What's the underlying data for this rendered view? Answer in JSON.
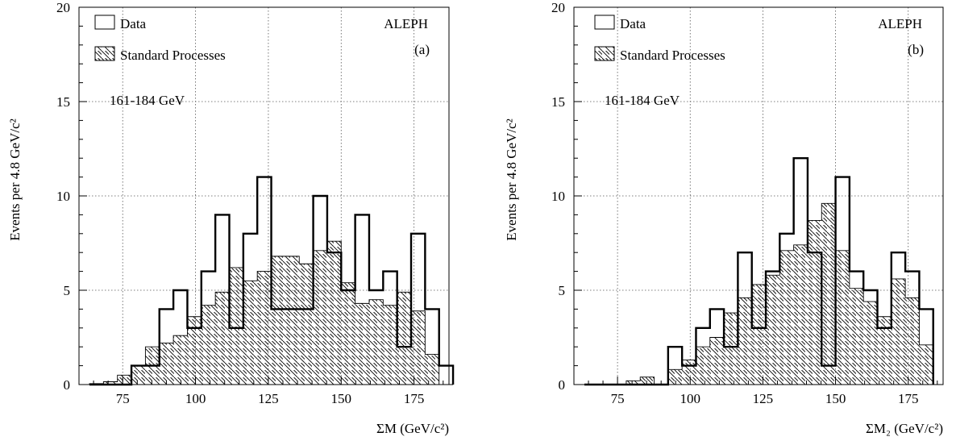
{
  "chart_data": [
    {
      "type": "bar",
      "panel_label": "(a)",
      "experiment_label": "ALEPH",
      "energy_label": "161-184 GeV",
      "ylabel": "Events per 4.8 GeV/c²",
      "xlabel": "ΣM (GeV/c²)",
      "xlim": [
        60,
        187
      ],
      "ylim": [
        0,
        20
      ],
      "xticks": [
        75,
        100,
        125,
        150,
        175
      ],
      "yticks": [
        0,
        5,
        10,
        15,
        20
      ],
      "grid": true,
      "legend": {
        "placement": "top-left",
        "entries": [
          "Data",
          "Standard Processes"
        ]
      },
      "bin_start": 63.6,
      "bin_width": 4.8,
      "series": [
        {
          "name": "Data",
          "style": "outline",
          "values": [
            0,
            0,
            0,
            1,
            1,
            4,
            5,
            3,
            6,
            9,
            3,
            8,
            11,
            4,
            4,
            4,
            10,
            7,
            5,
            9,
            5,
            6,
            2,
            8,
            4,
            1
          ]
        },
        {
          "name": "Standard Processes",
          "style": "hatched",
          "values": [
            0.05,
            0.15,
            0.5,
            1.0,
            2.0,
            2.2,
            2.6,
            3.6,
            4.2,
            4.9,
            6.2,
            5.5,
            6.0,
            6.8,
            6.8,
            6.4,
            7.1,
            7.6,
            5.4,
            4.3,
            4.5,
            4.2,
            4.9,
            3.9,
            1.6,
            0.0
          ]
        }
      ]
    },
    {
      "type": "bar",
      "panel_label": "(b)",
      "experiment_label": "ALEPH",
      "energy_label": "161-184 GeV",
      "ylabel": "Events per 4.8 GeV/c²",
      "xlabel": "ΣM₂ (GeV/c²)",
      "xlim": [
        60,
        187
      ],
      "ylim": [
        0,
        20
      ],
      "xticks": [
        75,
        100,
        125,
        150,
        175
      ],
      "yticks": [
        0,
        5,
        10,
        15,
        20
      ],
      "grid": true,
      "legend": {
        "placement": "top-left",
        "entries": [
          "Data",
          "Standard Processes"
        ]
      },
      "bin_start": 63.6,
      "bin_width": 4.8,
      "series": [
        {
          "name": "Data",
          "style": "outline",
          "values": [
            0,
            0,
            0,
            0,
            0,
            0,
            2,
            1,
            3,
            4,
            2,
            7,
            3,
            6,
            8,
            12,
            7,
            1,
            11,
            6,
            5,
            3,
            7,
            6,
            4
          ]
        },
        {
          "name": "Standard Processes",
          "style": "hatched",
          "values": [
            0,
            0,
            0,
            0.2,
            0.4,
            0.0,
            0.8,
            1.3,
            2.0,
            2.5,
            3.8,
            4.6,
            5.3,
            5.8,
            7.1,
            7.4,
            8.7,
            9.6,
            7.1,
            5.1,
            4.4,
            3.6,
            5.6,
            4.6,
            2.1
          ]
        }
      ]
    }
  ]
}
